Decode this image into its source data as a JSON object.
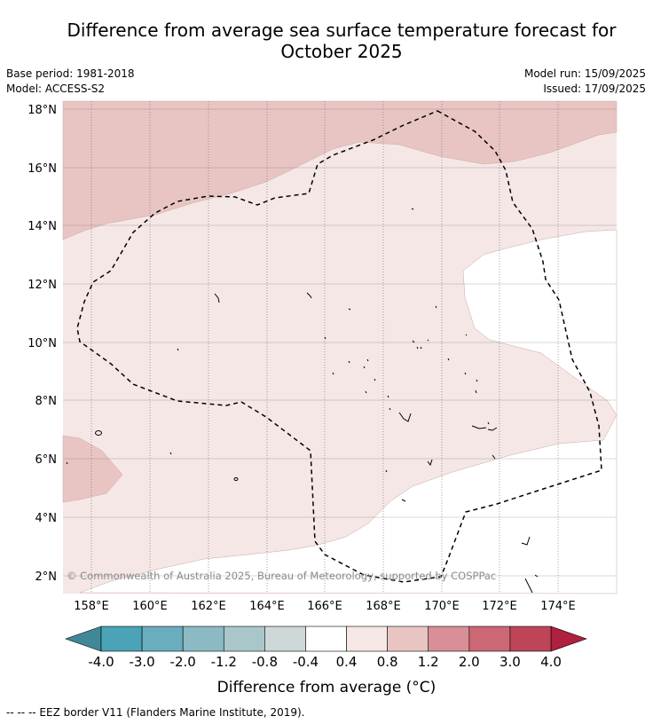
{
  "title": "Difference from average sea surface temperature forecast for October 2025",
  "meta": {
    "base_period": "Base period: 1981-2018",
    "model": "Model: ACCESS-S2",
    "model_run": "Model run: 15/09/2025",
    "issued": "Issued: 17/09/2025"
  },
  "map": {
    "lon_range": [
      157,
      175
    ],
    "lat_range": [
      1.4,
      18.3
    ],
    "lat_ticks": [
      {
        "value": 18,
        "label": "18°N"
      },
      {
        "value": 16,
        "label": "16°N"
      },
      {
        "value": 14,
        "label": "14°N"
      },
      {
        "value": 12,
        "label": "12°N"
      },
      {
        "value": 10,
        "label": "10°N"
      },
      {
        "value": 8,
        "label": "8°N"
      },
      {
        "value": 6,
        "label": "6°N"
      },
      {
        "value": 4,
        "label": "4°N"
      },
      {
        "value": 2,
        "label": "2°N"
      }
    ],
    "lon_ticks": [
      {
        "value": 158,
        "label": "158°E"
      },
      {
        "value": 160,
        "label": "160°E"
      },
      {
        "value": 162,
        "label": "162°E"
      },
      {
        "value": 164,
        "label": "164°E"
      },
      {
        "value": 166,
        "label": "166°E"
      },
      {
        "value": 168,
        "label": "168°E"
      },
      {
        "value": 170,
        "label": "170°E"
      },
      {
        "value": 172,
        "label": "172°E"
      },
      {
        "value": 174,
        "label": "174°E"
      }
    ],
    "copyright": "© Commonwealth of Australia 2025, Bureau of Meteorology, supported by COSPPac",
    "colors": {
      "class_0_4_0_8": "#f5e7e6",
      "class_0_8_1_2": "#e8c5c2",
      "class_neg0_4_0_4": "#ffffff",
      "eez_border": "#000000"
    }
  },
  "colorbar": {
    "labels": [
      "-4.0",
      "-3.0",
      "-2.0",
      "-1.2",
      "-0.8",
      "-0.4",
      "0.4",
      "0.8",
      "1.2",
      "2.0",
      "3.0",
      "4.0"
    ],
    "colors": [
      "#4aa3b6",
      "#6aaebe",
      "#8cbac4",
      "#a9c7cb",
      "#cfd8d9",
      "#ffffff",
      "#f5e7e6",
      "#e8c5c2",
      "#d88f98",
      "#cc6776",
      "#be4458"
    ],
    "low_color": "#418896",
    "high_color": "#b0203f",
    "label": "Difference from average (°C)"
  },
  "footer": "--  --  -- EEZ border V11 (Flanders Marine Institute, 2019)."
}
